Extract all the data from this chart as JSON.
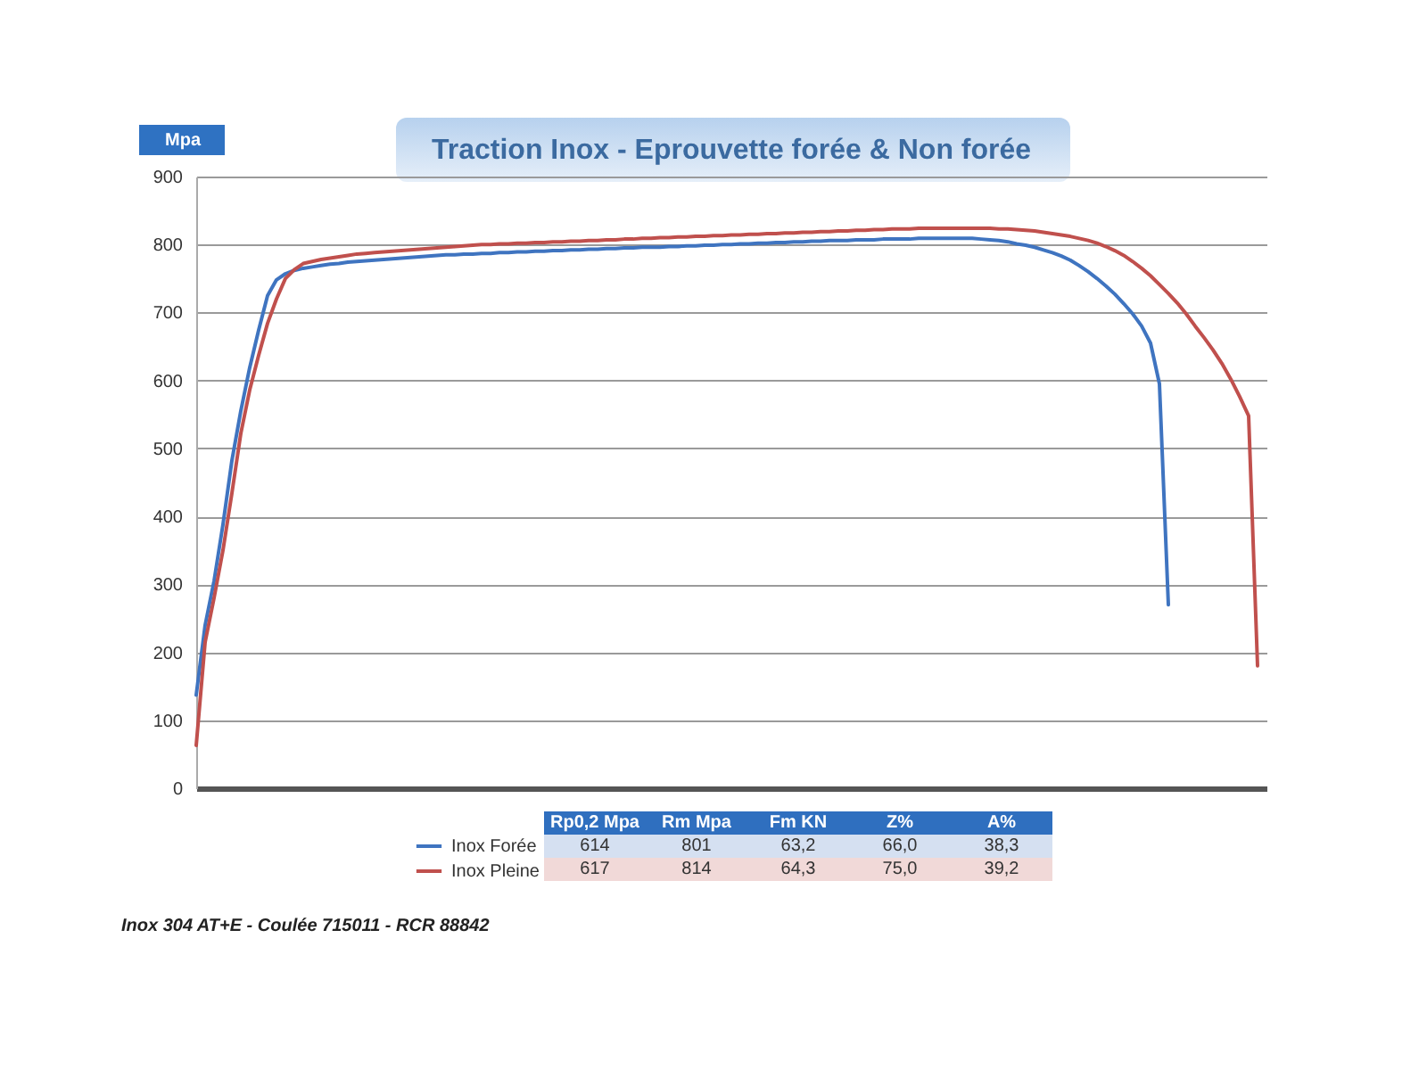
{
  "chart_data": {
    "type": "line",
    "title": "Traction Inox  - Eprouvette forée & Non forée",
    "ylabel": "Mpa",
    "categories": [
      null,
      null,
      null,
      null,
      null,
      null,
      null,
      null,
      null,
      null,
      null,
      null,
      null,
      null,
      null,
      null,
      null,
      null,
      null,
      null,
      null,
      null,
      null,
      null,
      null,
      null,
      null,
      null,
      null,
      null,
      null,
      null,
      null,
      null,
      null,
      null,
      null,
      null,
      null,
      null,
      null,
      null,
      null,
      null,
      null,
      null,
      null,
      null,
      null,
      null,
      null,
      null,
      null,
      null,
      null,
      null,
      null,
      null,
      null,
      null,
      null,
      null,
      null,
      null,
      null,
      null,
      null,
      null,
      null,
      null,
      null,
      null,
      null,
      null,
      null,
      null,
      null,
      null,
      null,
      null,
      null,
      null,
      null,
      null,
      null,
      null,
      null,
      null,
      null,
      null,
      null,
      null,
      null,
      null,
      null,
      null,
      null,
      null,
      null,
      null,
      null,
      null,
      null,
      null,
      null,
      null,
      null,
      null,
      null,
      null,
      null,
      null,
      null,
      null,
      null,
      null,
      null,
      null,
      null,
      null,
      null
    ],
    "series": [
      {
        "name": "Inox Forée",
        "color": "#3f74c0",
        "values": [
          137,
          240,
          305,
          388,
          482,
          555,
          619,
          674,
          725,
          748,
          757,
          762,
          765,
          767,
          769,
          771,
          772,
          774,
          775,
          776,
          777,
          778,
          779,
          780,
          781,
          782,
          783,
          784,
          785,
          785,
          786,
          786,
          787,
          787,
          788,
          788,
          789,
          789,
          790,
          790,
          791,
          791,
          792,
          792,
          793,
          793,
          794,
          794,
          795,
          795,
          796,
          796,
          796,
          797,
          797,
          798,
          798,
          799,
          799,
          800,
          800,
          801,
          801,
          802,
          802,
          803,
          803,
          804,
          804,
          805,
          805,
          806,
          806,
          806,
          807,
          807,
          807,
          808,
          808,
          808,
          808,
          809,
          809,
          809,
          809,
          809,
          809,
          809,
          808,
          807,
          806,
          804,
          801,
          799,
          796,
          792,
          788,
          783,
          777,
          769,
          760,
          750,
          739,
          727,
          713,
          698,
          680,
          655,
          595,
          270,
          null,
          null,
          null,
          null,
          null,
          null,
          null,
          null,
          null,
          null,
          null
        ]
      },
      {
        "name": "Inox Pleine",
        "color": "#c0504d",
        "values": [
          63,
          215,
          280,
          350,
          434,
          522,
          586,
          637,
          684,
          720,
          750,
          763,
          772,
          775,
          778,
          780,
          782,
          784,
          786,
          787,
          788,
          789,
          790,
          791,
          792,
          793,
          794,
          795,
          796,
          797,
          798,
          799,
          800,
          800,
          801,
          801,
          802,
          802,
          803,
          803,
          804,
          804,
          805,
          805,
          806,
          806,
          807,
          807,
          808,
          808,
          809,
          809,
          810,
          810,
          811,
          811,
          812,
          812,
          813,
          813,
          814,
          814,
          815,
          815,
          816,
          816,
          817,
          817,
          818,
          818,
          819,
          819,
          820,
          820,
          821,
          821,
          822,
          822,
          823,
          823,
          823,
          824,
          824,
          824,
          824,
          824,
          824,
          824,
          824,
          824,
          823,
          823,
          822,
          821,
          820,
          818,
          816,
          814,
          812,
          809,
          806,
          802,
          797,
          791,
          784,
          775,
          765,
          754,
          741,
          728,
          714,
          698,
          680,
          663,
          645,
          625,
          602,
          576,
          548,
          180,
          null
        ]
      }
    ],
    "ylim": [
      0,
      900
    ],
    "yticks": [
      0,
      100,
      200,
      300,
      400,
      500,
      600,
      700,
      800,
      900
    ],
    "grid": "y",
    "legend": "bottom",
    "tick_labels": "y",
    "annotations": [
      "Rp0,2 Mpa",
      "Rm Mpa",
      "Fm KN",
      "Z%",
      "A%",
      "614",
      "801",
      "63,2",
      "66,0",
      "38,3",
      "617",
      "814",
      "64,3",
      "75,0",
      "39,2",
      "Inox 304 AT+E - Coulée 715011 - RCR 88842"
    ]
  }
}
